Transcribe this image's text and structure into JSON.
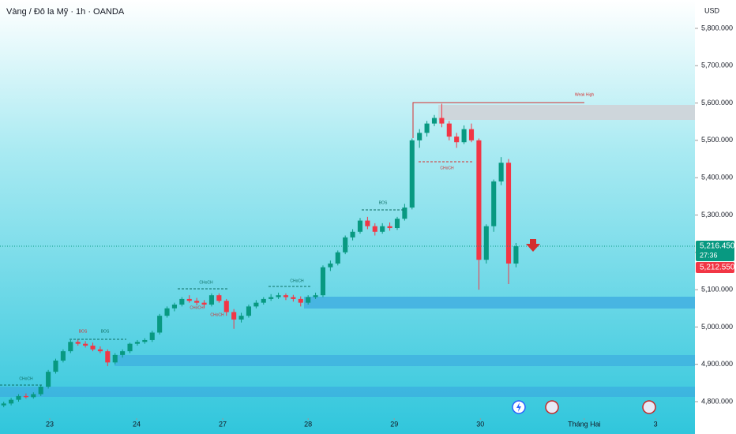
{
  "chart_data": {
    "type": "candlestick",
    "title": "Vàng / Đô la Mỹ · 1h · OANDA",
    "currency": "USD",
    "up_color": "#089981",
    "down_color": "#f23645",
    "open": [
      4790,
      4795,
      4805,
      4815,
      4812,
      4820,
      4840,
      4880,
      4910,
      4935,
      4960,
      4955,
      4950,
      4940,
      4935,
      4905,
      4925,
      4935,
      4955,
      4960,
      4965,
      4985,
      5030,
      5050,
      5060,
      5075,
      5070,
      5065,
      5060,
      5085,
      5070,
      5040,
      5020,
      5030,
      5055,
      5065,
      5075,
      5080,
      5085,
      5080,
      5075,
      5065,
      5080,
      5085,
      5160,
      5170,
      5200,
      5240,
      5255,
      5285,
      5270,
      5255,
      5270,
      5265,
      5290,
      5320,
      5500,
      5520,
      5545,
      5560,
      5545,
      5510,
      5495,
      5530,
      5500,
      5180,
      5270,
      5390,
      5440,
      5170
    ],
    "high": [
      4800,
      4810,
      4820,
      4822,
      4825,
      4845,
      4885,
      4915,
      4940,
      4965,
      4966,
      4962,
      4958,
      4948,
      4940,
      4930,
      4940,
      4958,
      4965,
      4970,
      4990,
      5035,
      5055,
      5065,
      5080,
      5085,
      5078,
      5072,
      5090,
      5090,
      5075,
      5048,
      5038,
      5060,
      5072,
      5080,
      5088,
      5092,
      5090,
      5086,
      5082,
      5085,
      5092,
      5165,
      5178,
      5205,
      5245,
      5262,
      5292,
      5295,
      5278,
      5278,
      5280,
      5295,
      5330,
      5505,
      5530,
      5552,
      5568,
      5598,
      5552,
      5520,
      5540,
      5545,
      5505,
      5275,
      5395,
      5455,
      5450,
      5225
    ],
    "low": [
      4785,
      4790,
      4800,
      4808,
      4808,
      4815,
      4835,
      4875,
      4905,
      4930,
      4950,
      4945,
      4935,
      4930,
      4895,
      4900,
      4918,
      4930,
      4950,
      4955,
      4960,
      4980,
      5025,
      5042,
      5055,
      5065,
      5058,
      5050,
      5055,
      5065,
      5030,
      4995,
      5012,
      5025,
      5050,
      5060,
      5070,
      5075,
      5072,
      5068,
      5055,
      5060,
      5075,
      5080,
      5150,
      5165,
      5195,
      5232,
      5250,
      5262,
      5245,
      5250,
      5258,
      5260,
      5285,
      5315,
      5480,
      5510,
      5538,
      5535,
      5500,
      5480,
      5490,
      5495,
      5100,
      5170,
      5255,
      5380,
      5115,
      5160
    ],
    "close": [
      4795,
      4805,
      4815,
      4812,
      4820,
      4840,
      4880,
      4910,
      4935,
      4960,
      4955,
      4950,
      4940,
      4935,
      4905,
      4925,
      4935,
      4955,
      4960,
      4965,
      4985,
      5030,
      5050,
      5060,
      5075,
      5070,
      5065,
      5060,
      5085,
      5070,
      5040,
      5020,
      5030,
      5055,
      5065,
      5075,
      5080,
      5085,
      5080,
      5075,
      5065,
      5080,
      5085,
      5160,
      5170,
      5200,
      5240,
      5255,
      5285,
      5270,
      5255,
      5270,
      5265,
      5290,
      5320,
      5500,
      5520,
      5545,
      5560,
      5545,
      5510,
      5495,
      5530,
      5500,
      5180,
      5270,
      5390,
      5440,
      5170,
      5216.45
    ],
    "xlim": [
      -0.5,
      93.1
    ],
    "xticks": [
      {
        "value": 6.2,
        "label": "23"
      },
      {
        "value": 17.9,
        "label": "24"
      },
      {
        "value": 29.5,
        "label": "27"
      },
      {
        "value": 41,
        "label": "28"
      },
      {
        "value": 52.6,
        "label": "29"
      },
      {
        "value": 64.2,
        "label": "30"
      },
      {
        "value": 78.2,
        "label": "Tháng Hai"
      },
      {
        "value": 87.8,
        "label": "3"
      }
    ],
    "ylim": [
      4772.5,
      5876
    ],
    "yticks": [
      {
        "value": 4800,
        "label": "4,800.000"
      },
      {
        "value": 4900,
        "label": "4,900.000"
      },
      {
        "value": 5000,
        "label": "5,000.000"
      },
      {
        "value": 5100,
        "label": "5,100.000"
      },
      {
        "value": 5200,
        "label": "5,200.000"
      },
      {
        "value": 5300,
        "label": "5,300.000"
      },
      {
        "value": 5400,
        "label": "5,400.000"
      },
      {
        "value": 5500,
        "label": "5,500.000"
      },
      {
        "value": 5600,
        "label": "5,600.000"
      },
      {
        "value": 5700,
        "label": "5,700.000"
      },
      {
        "value": 5800,
        "label": "5,800.000"
      }
    ],
    "last_price": {
      "value": 5216.45,
      "label": "5,216.450"
    },
    "countdown": "27:36",
    "bid_price": {
      "value": 5212.55,
      "label": "5,212.550"
    },
    "annotations": [
      "Weak High",
      "CHoCH",
      "BOS",
      "BOS",
      "CHoCH",
      "CHoCH",
      "CHoCH",
      "CHoCH",
      "BOS",
      "CHoCH"
    ]
  }
}
